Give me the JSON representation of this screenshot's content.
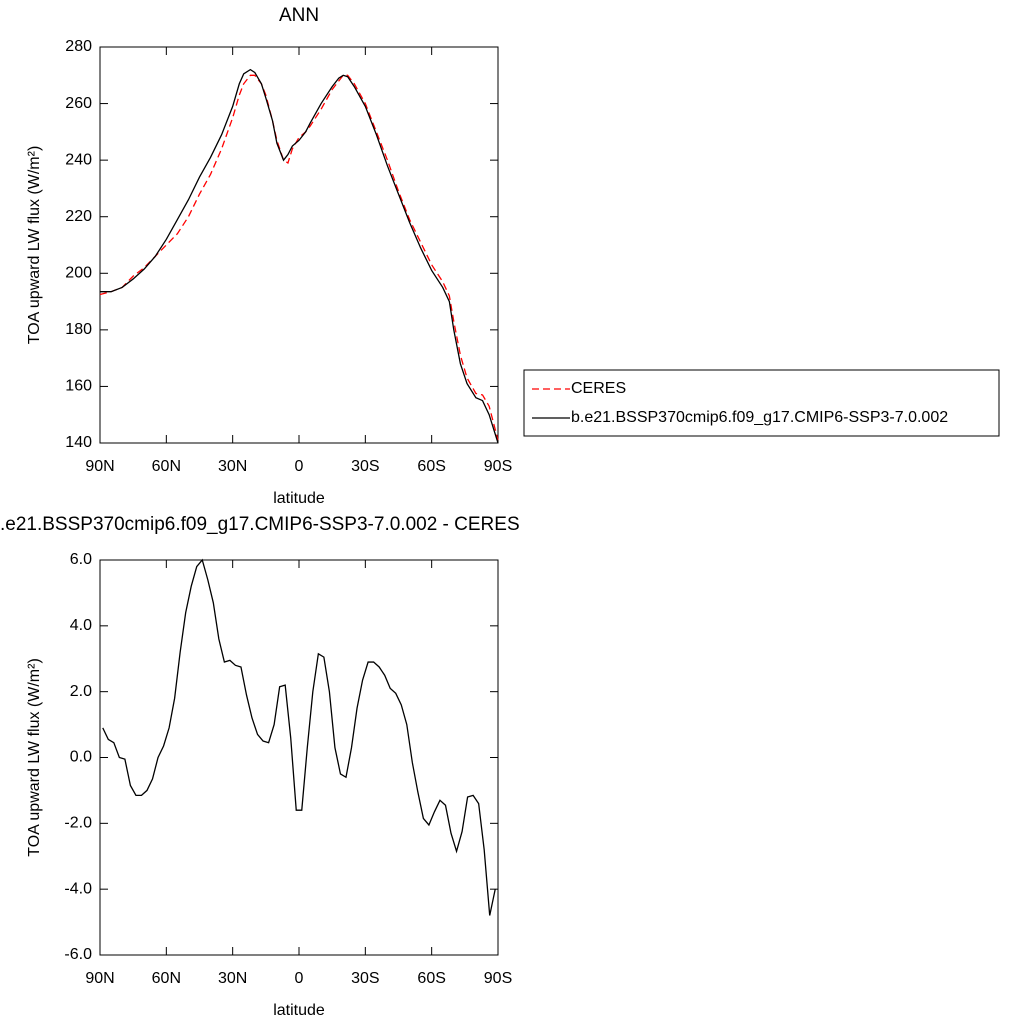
{
  "chart_data": [
    {
      "type": "line",
      "title": "ANN",
      "x_label": "latitude",
      "y_label": "TOA upward LW flux (W/m²)",
      "x": [
        90,
        85,
        80,
        75,
        70,
        65,
        60,
        55,
        50,
        45,
        40,
        35,
        30,
        27,
        25,
        22,
        20,
        17,
        15,
        12,
        10,
        7,
        5,
        3,
        0,
        -3,
        -5,
        -10,
        -15,
        -18,
        -20,
        -22,
        -25,
        -30,
        -35,
        -40,
        -45,
        -50,
        -55,
        -60,
        -65,
        -68,
        -70,
        -73,
        -76,
        -80,
        -83,
        -86,
        -90
      ],
      "series": [
        {
          "name": "CERES",
          "color": "#ff0000",
          "style": "dashed",
          "values": [
            192.5,
            193.5,
            195,
            199,
            202,
            206,
            210,
            214,
            220,
            228,
            235,
            244,
            255,
            263,
            267,
            270,
            270,
            267,
            263,
            254,
            247,
            240,
            239,
            244,
            248,
            250,
            252,
            258,
            265,
            268,
            270,
            270,
            267,
            260,
            250,
            240,
            229,
            219,
            211,
            203,
            197,
            192,
            183,
            171,
            163,
            157.5,
            157,
            153,
            141
          ]
        },
        {
          "name": "b.e21.BSSP370cmip6.f09_g17.CMIP6-SSP3-7.0.002",
          "color": "#000000",
          "style": "solid",
          "values": [
            193.5,
            193.5,
            195,
            198,
            201.5,
            206,
            212,
            219,
            226,
            234,
            241,
            249,
            259,
            267,
            270.5,
            272,
            271,
            267,
            262,
            254,
            246,
            240,
            242,
            245,
            247,
            250,
            253,
            260,
            266,
            269,
            270,
            269.5,
            266,
            259,
            249,
            238,
            228,
            218,
            209,
            201,
            195,
            190,
            180,
            168,
            161,
            156,
            155,
            150,
            140
          ]
        }
      ],
      "xlim": [
        90,
        -90
      ],
      "xticks": [
        {
          "value": 90,
          "label": "90N"
        },
        {
          "value": 60,
          "label": "60N"
        },
        {
          "value": 30,
          "label": "30N"
        },
        0,
        {
          "value": -30,
          "label": "30S"
        },
        {
          "value": -60,
          "label": "60S"
        },
        {
          "value": -90,
          "label": "90S"
        }
      ],
      "ylim": [
        140,
        280
      ],
      "yticks": [
        140,
        160,
        180,
        200,
        220,
        240,
        260,
        280
      ],
      "legend": "right"
    },
    {
      "type": "line",
      "title": ".e21.BSSP370cmip6.f09_g17.CMIP6-SSP3-7.0.002 - CERES",
      "x_label": "latitude",
      "y_label": "TOA upward LW flux (W/m²)",
      "x": [
        88.75,
        86.25,
        83.75,
        81.25,
        78.75,
        76.25,
        73.75,
        71.25,
        68.75,
        66.25,
        63.75,
        61.25,
        58.75,
        56.25,
        53.75,
        51.25,
        48.75,
        46.25,
        43.75,
        41.25,
        38.75,
        36.25,
        33.75,
        31.25,
        28.75,
        26.25,
        23.75,
        21.25,
        18.75,
        16.25,
        13.75,
        11.25,
        8.75,
        6.25,
        3.75,
        1.25,
        -1.25,
        -3.75,
        -6.25,
        -8.75,
        -11.25,
        -13.75,
        -16.25,
        -18.75,
        -21.25,
        -23.75,
        -26.25,
        -28.75,
        -31.25,
        -33.75,
        -36.25,
        -38.75,
        -41.25,
        -43.75,
        -46.25,
        -48.75,
        -51.25,
        -53.75,
        -56.25,
        -58.75,
        -61.25,
        -63.75,
        -66.25,
        -68.75,
        -71.25,
        -73.75,
        -76.25,
        -78.75,
        -81.25,
        -83.75,
        -86.25,
        -88.75
      ],
      "series": [
        {
          "color": "#000000",
          "style": "solid",
          "values": [
            0.9,
            0.55,
            0.45,
            0,
            -0.05,
            -0.85,
            -1.15,
            -1.15,
            -1.0,
            -0.65,
            0,
            0.35,
            0.9,
            1.8,
            3.2,
            4.4,
            5.2,
            5.8,
            6.0,
            5.4,
            4.7,
            3.6,
            2.9,
            2.95,
            2.8,
            2.75,
            1.9,
            1.2,
            0.7,
            0.5,
            0.45,
            1.0,
            2.15,
            2.2,
            0.6,
            -1.6,
            -1.6,
            0.3,
            2.0,
            3.15,
            3.05,
            2.0,
            0.3,
            -0.5,
            -0.6,
            0.3,
            1.5,
            2.35,
            2.9,
            2.9,
            2.75,
            2.5,
            2.1,
            1.95,
            1.6,
            1.0,
            -0.15,
            -1.05,
            -1.85,
            -2.05,
            -1.65,
            -1.3,
            -1.45,
            -2.3,
            -2.85,
            -2.25,
            -1.2,
            -1.15,
            -1.4,
            -2.8,
            -4.8,
            -4.0
          ]
        }
      ],
      "xlim": [
        90,
        -90
      ],
      "xticks": [
        {
          "value": 90,
          "label": "90N"
        },
        {
          "value": 60,
          "label": "60N"
        },
        {
          "value": 30,
          "label": "30N"
        },
        0,
        {
          "value": -30,
          "label": "30S"
        },
        {
          "value": -60,
          "label": "60S"
        },
        {
          "value": -90,
          "label": "90S"
        }
      ],
      "ylim": [
        -6,
        6
      ],
      "yticks": [
        {
          "value": -6,
          "label": "-6.0"
        },
        {
          "value": -4,
          "label": "-4.0"
        },
        {
          "value": -2,
          "label": "-2.0"
        },
        {
          "value": 0,
          "label": "0.0"
        },
        {
          "value": 2,
          "label": "2.0"
        },
        {
          "value": 4,
          "label": "4.0"
        },
        {
          "value": 6,
          "label": "6.0"
        }
      ]
    }
  ]
}
